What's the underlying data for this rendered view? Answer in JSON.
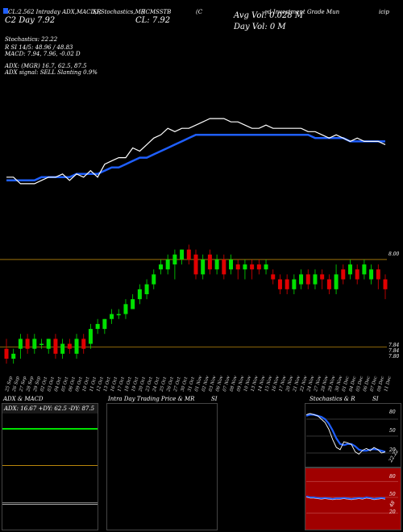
{
  "header": {
    "left_line": "CL:2.562 Intraday ADX,MACD,R",
    "seg2": "SI,Stochastics,MR",
    "seg3": "(ICMSSTB",
    "seg4": "(C",
    "seg5": "ed Investment Grade  Mun",
    "seg6": "icip",
    "price_left": "C2  Day  7.92",
    "price_mid": "CL: 7.92",
    "avg_vol": "Avg Vol: 0.028  M",
    "day_vol": "Day Vol: 0   M"
  },
  "indicators": {
    "stoch": "Stochastics: 22.22",
    "rsi": "R           SI 14/5: 48.96  / 48.83",
    "macd": "MACD: 7.94,  7.96,  -0.02  D",
    "adx": "ADX:                           (MGR) 16.7,  62.5,   87.5",
    "adx_signal": "ADX  signal: SELL  Slanting 0.9%"
  },
  "price_panel": {
    "level_top_label": "8.00",
    "level_bottom_label1": "7.84",
    "level_bottom_label2": "7.84",
    "level_bottom_label3": "7.80"
  },
  "dates": [
    "25 Sep",
    "26 Sep",
    "27 Sep",
    "28 Sep",
    "29 Sep",
    "02 Oct",
    "03 Oct",
    "04 Oct",
    "05 Oct",
    "06 Oct",
    "09 Oct",
    "10 Oct",
    "11 Oct",
    "12 Oct",
    "13 Oct",
    "16 Oct",
    "17 Oct",
    "18 Oct",
    "19 Oct",
    "20 Oct",
    "23 Oct",
    "24 Oct",
    "25 Oct",
    "26 Oct",
    "27 Oct",
    "30 Oct",
    "31 Oct",
    "01 Nov",
    "02 Nov",
    "03 Nov",
    "06 Nov",
    "07 Nov",
    "08 Nov",
    "09 Nov",
    "10 Nov",
    "13 Nov",
    "14 Nov",
    "15 Nov",
    "16 Nov",
    "17 Nov",
    "20 Nov",
    "21 Nov",
    "22 Nov",
    "24 Nov",
    "27 Nov",
    "28 Nov",
    "29 Nov",
    "30 Nov",
    "01 Dec",
    "04 Dec",
    "05 Dec",
    "06 Dec",
    "07 Dec",
    "08 Dec",
    "11 Dec"
  ],
  "bottom_panels": {
    "adx_title": "ADX  & MACD",
    "adx_values": "ADX: 16.67  +DY: 62.5  -DY: 87.5",
    "intraday_title": "Intra  Day  Trading Price  & MR",
    "intraday_title2": "SI",
    "stoch_title": "Stochastics & R",
    "stoch_title2": "SI",
    "stoch_ticks": [
      "80",
      "50",
      "20"
    ],
    "stoch_last": "22.22",
    "rsi_ticks": [
      "80",
      "50",
      "20"
    ],
    "rsi_last": "48"
  },
  "colors": {
    "up": "#00e000",
    "down": "#e00000",
    "ma": "#1f5fff",
    "line": "#ffffff",
    "level": "#b8860b",
    "rsi_bg": "#a00000"
  },
  "chart_data": {
    "type": "line",
    "x": [
      "25 Sep",
      "26 Sep",
      "27 Sep",
      "28 Sep",
      "29 Sep",
      "02 Oct",
      "03 Oct",
      "04 Oct",
      "05 Oct",
      "06 Oct",
      "09 Oct",
      "10 Oct",
      "11 Oct",
      "12 Oct",
      "13 Oct",
      "16 Oct",
      "17 Oct",
      "18 Oct",
      "19 Oct",
      "20 Oct",
      "23 Oct",
      "24 Oct",
      "25 Oct",
      "26 Oct",
      "27 Oct",
      "30 Oct",
      "31 Oct",
      "01 Nov",
      "02 Nov",
      "03 Nov",
      "06 Nov",
      "07 Nov",
      "08 Nov",
      "09 Nov",
      "10 Nov",
      "13 Nov",
      "14 Nov",
      "15 Nov",
      "16 Nov",
      "17 Nov",
      "20 Nov",
      "21 Nov",
      "22 Nov",
      "24 Nov",
      "27 Nov",
      "28 Nov",
      "29 Nov",
      "30 Nov",
      "01 Dec",
      "04 Dec",
      "05 Dec",
      "06 Dec",
      "07 Dec",
      "08 Dec",
      "11 Dec"
    ],
    "series": [
      {
        "values": [
          7.87,
          7.87,
          7.85,
          7.85,
          7.85,
          7.86,
          7.87,
          7.87,
          7.88,
          7.86,
          7.88,
          7.87,
          7.89,
          7.87,
          7.91,
          7.92,
          7.93,
          7.93,
          7.96,
          7.95,
          7.97,
          7.99,
          8.0,
          8.02,
          8.01,
          8.02,
          8.02,
          8.03,
          8.04,
          8.05,
          8.05,
          8.05,
          8.04,
          8.04,
          8.03,
          8.02,
          8.02,
          8.03,
          8.02,
          8.02,
          8.02,
          8.02,
          8.02,
          8.01,
          8.01,
          8.0,
          7.99,
          8.0,
          7.99,
          7.98,
          7.99,
          7.98,
          7.98,
          7.98,
          7.97
        ]
      },
      {
        "values": [
          7.86,
          7.86,
          7.86,
          7.86,
          7.86,
          7.87,
          7.87,
          7.87,
          7.87,
          7.87,
          7.88,
          7.88,
          7.88,
          7.88,
          7.89,
          7.9,
          7.9,
          7.91,
          7.92,
          7.93,
          7.93,
          7.94,
          7.95,
          7.96,
          7.97,
          7.98,
          7.99,
          8.0,
          8.0,
          8.0,
          8.0,
          8.0,
          8.0,
          8.0,
          8.0,
          8.0,
          8.0,
          8.0,
          8.0,
          8.0,
          8.0,
          8.0,
          8.0,
          8.0,
          7.99,
          7.99,
          7.99,
          7.99,
          7.99,
          7.98,
          7.98,
          7.98,
          7.98,
          7.98,
          7.98
        ]
      }
    ],
    "candles": [
      {
        "o": 7.82,
        "c": 7.8,
        "h": 7.84,
        "l": 7.79
      },
      {
        "o": 7.8,
        "c": 7.81,
        "h": 7.82,
        "l": 7.79
      },
      {
        "o": 7.82,
        "c": 7.84,
        "h": 7.85,
        "l": 7.8
      },
      {
        "o": 7.84,
        "c": 7.82,
        "h": 7.85,
        "l": 7.81
      },
      {
        "o": 7.82,
        "c": 7.84,
        "h": 7.85,
        "l": 7.81
      },
      {
        "o": 7.83,
        "c": 7.83,
        "h": 7.84,
        "l": 7.82
      },
      {
        "o": 7.82,
        "c": 7.84,
        "h": 7.84,
        "l": 7.81
      },
      {
        "o": 7.84,
        "c": 7.81,
        "h": 7.85,
        "l": 7.8
      },
      {
        "o": 7.81,
        "c": 7.83,
        "h": 7.84,
        "l": 7.8
      },
      {
        "o": 7.83,
        "c": 7.82,
        "h": 7.84,
        "l": 7.81
      },
      {
        "o": 7.81,
        "c": 7.84,
        "h": 7.85,
        "l": 7.8
      },
      {
        "o": 7.84,
        "c": 7.82,
        "h": 7.85,
        "l": 7.81
      },
      {
        "o": 7.83,
        "c": 7.86,
        "h": 7.87,
        "l": 7.82
      },
      {
        "o": 7.86,
        "c": 7.87,
        "h": 7.88,
        "l": 7.85
      },
      {
        "o": 7.86,
        "c": 7.88,
        "h": 7.88,
        "l": 7.85
      },
      {
        "o": 7.88,
        "c": 7.89,
        "h": 7.9,
        "l": 7.87
      },
      {
        "o": 7.89,
        "c": 7.89,
        "h": 7.9,
        "l": 7.88
      },
      {
        "o": 7.89,
        "c": 7.91,
        "h": 7.92,
        "l": 7.88
      },
      {
        "o": 7.9,
        "c": 7.92,
        "h": 7.93,
        "l": 7.9
      },
      {
        "o": 7.92,
        "c": 7.94,
        "h": 7.95,
        "l": 7.91
      },
      {
        "o": 7.93,
        "c": 7.95,
        "h": 7.96,
        "l": 7.92
      },
      {
        "o": 7.95,
        "c": 7.97,
        "h": 7.98,
        "l": 7.94
      },
      {
        "o": 7.98,
        "c": 7.99,
        "h": 8.0,
        "l": 7.97
      },
      {
        "o": 7.98,
        "c": 8.0,
        "h": 8.01,
        "l": 7.97
      },
      {
        "o": 7.99,
        "c": 8.01,
        "h": 8.02,
        "l": 7.96
      },
      {
        "o": 8.0,
        "c": 8.02,
        "h": 8.02,
        "l": 7.99
      },
      {
        "o": 8.02,
        "c": 8.0,
        "h": 8.03,
        "l": 7.99
      },
      {
        "o": 8.01,
        "c": 7.97,
        "h": 8.02,
        "l": 7.96
      },
      {
        "o": 7.97,
        "c": 8.0,
        "h": 8.01,
        "l": 7.96
      },
      {
        "o": 8.01,
        "c": 7.98,
        "h": 8.02,
        "l": 7.97
      },
      {
        "o": 7.98,
        "c": 8.0,
        "h": 8.01,
        "l": 7.97
      },
      {
        "o": 8.0,
        "c": 7.97,
        "h": 8.01,
        "l": 7.96
      },
      {
        "o": 7.98,
        "c": 8.0,
        "h": 8.01,
        "l": 7.97
      },
      {
        "o": 7.99,
        "c": 7.98,
        "h": 8.0,
        "l": 7.96
      },
      {
        "o": 7.98,
        "c": 7.99,
        "h": 8.0,
        "l": 7.96
      },
      {
        "o": 7.99,
        "c": 7.98,
        "h": 8.0,
        "l": 7.96
      },
      {
        "o": 7.99,
        "c": 7.98,
        "h": 8.0,
        "l": 7.97
      },
      {
        "o": 7.98,
        "c": 7.99,
        "h": 8.0,
        "l": 7.97
      },
      {
        "o": 7.97,
        "c": 7.96,
        "h": 7.98,
        "l": 7.95
      },
      {
        "o": 7.96,
        "c": 7.94,
        "h": 7.97,
        "l": 7.93
      },
      {
        "o": 7.96,
        "c": 7.94,
        "h": 7.97,
        "l": 7.93
      },
      {
        "o": 7.94,
        "c": 7.96,
        "h": 7.97,
        "l": 7.93
      },
      {
        "o": 7.95,
        "c": 7.97,
        "h": 7.98,
        "l": 7.94
      },
      {
        "o": 7.97,
        "c": 7.95,
        "h": 7.98,
        "l": 7.94
      },
      {
        "o": 7.95,
        "c": 7.97,
        "h": 7.98,
        "l": 7.94
      },
      {
        "o": 7.97,
        "c": 7.96,
        "h": 7.98,
        "l": 7.94
      },
      {
        "o": 7.96,
        "c": 7.94,
        "h": 7.97,
        "l": 7.93
      },
      {
        "o": 7.94,
        "c": 7.97,
        "h": 7.99,
        "l": 7.93
      },
      {
        "o": 7.98,
        "c": 7.96,
        "h": 7.99,
        "l": 7.95
      },
      {
        "o": 7.97,
        "c": 7.99,
        "h": 8.0,
        "l": 7.96
      },
      {
        "o": 7.98,
        "c": 7.96,
        "h": 7.99,
        "l": 7.95
      },
      {
        "o": 7.97,
        "c": 7.99,
        "h": 8.0,
        "l": 7.96
      },
      {
        "o": 7.96,
        "c": 7.98,
        "h": 7.99,
        "l": 7.95
      },
      {
        "o": 7.98,
        "c": 7.96,
        "h": 7.99,
        "l": 7.94
      },
      {
        "o": 7.96,
        "c": 7.94,
        "h": 7.97,
        "l": 7.92
      }
    ],
    "levels": [
      8.0,
      7.84
    ],
    "ylim": [
      7.8,
      8.06
    ]
  }
}
